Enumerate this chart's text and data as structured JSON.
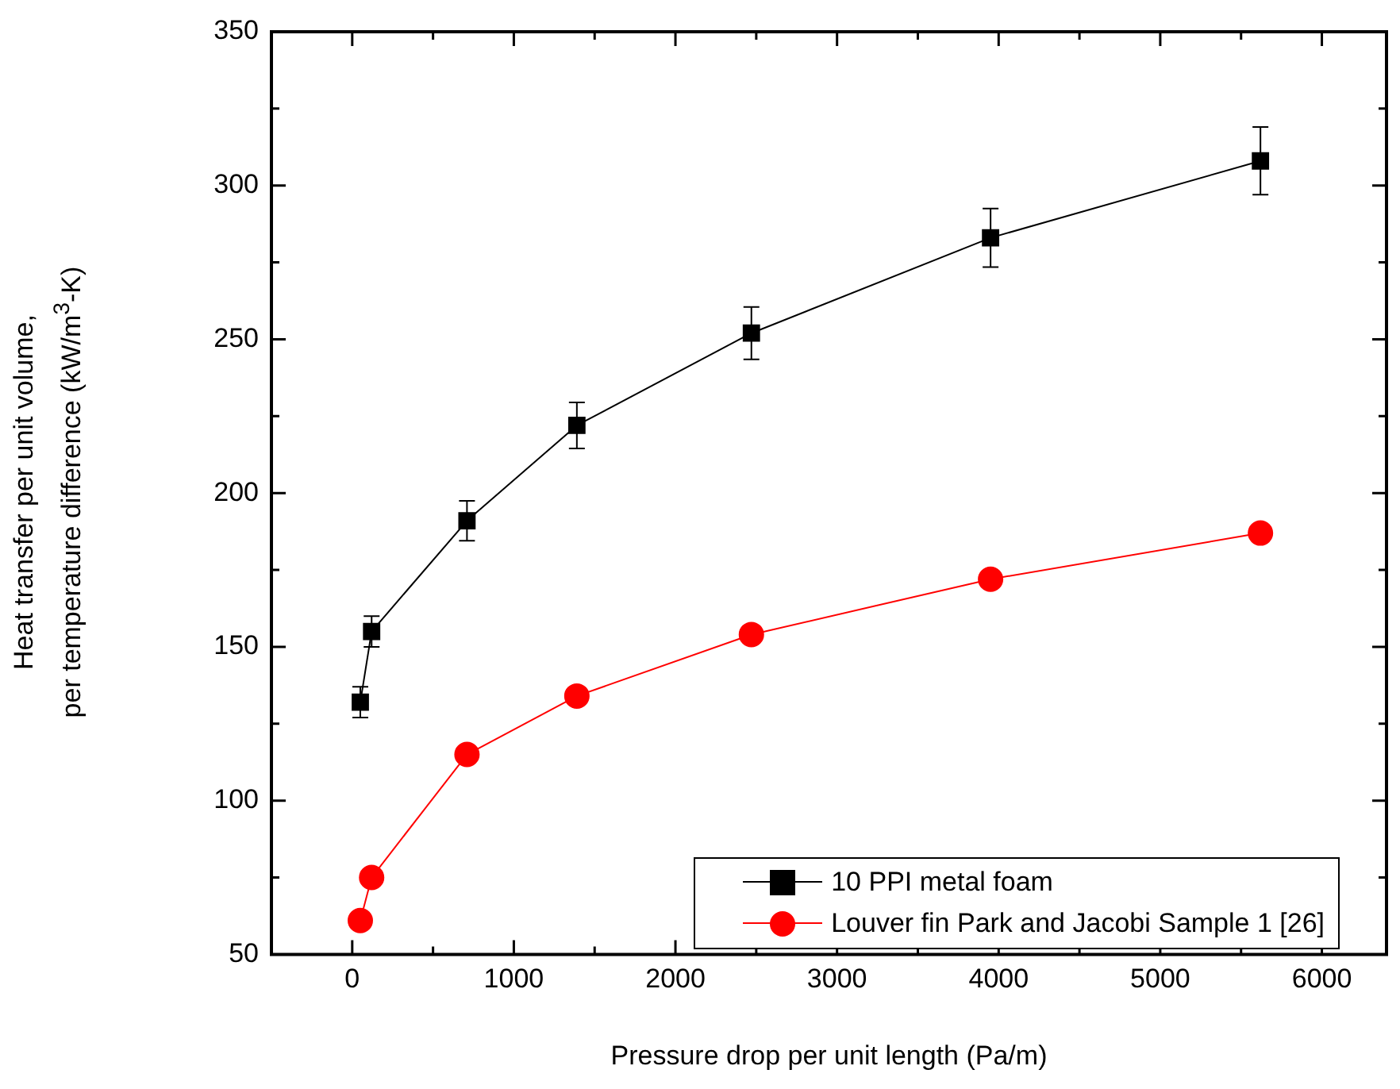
{
  "chart_data": {
    "type": "line",
    "xlabel": "Pressure drop per unit length (Pa/m)",
    "ylabel": "Heat transfer per unit volume,\nper temperature difference  (kW/m$^{3}$-K)",
    "xlim": [
      -500,
      6400
    ],
    "xticks": [
      0,
      {
        "value": 500,
        "label": null
      },
      1000,
      {
        "value": 1500,
        "label": null
      },
      2000,
      {
        "value": 2500,
        "label": null
      },
      3000,
      {
        "value": 3500,
        "label": null
      },
      4000,
      {
        "value": 4500,
        "label": null
      },
      5000,
      {
        "value": 5500,
        "label": null
      },
      6000
    ],
    "ylim": [
      50,
      350
    ],
    "yticks": [
      50,
      {
        "value": 75,
        "label": null
      },
      100,
      {
        "value": 125,
        "label": null
      },
      150,
      {
        "value": 175,
        "label": null
      },
      200,
      {
        "value": 225,
        "label": null
      },
      250,
      {
        "value": 275,
        "label": null
      },
      300,
      {
        "value": 325,
        "label": null
      },
      350
    ],
    "grid": false,
    "legend": "bottom right",
    "line_style": "solid",
    "series": [
      {
        "name": "10 PPI metal foam",
        "color": "#000000",
        "marker": "square",
        "x": [
          50,
          120,
          710,
          1390,
          2470,
          3950,
          5620
        ],
        "values": [
          132,
          155,
          191,
          222,
          252,
          283,
          308
        ],
        "errors": [
          5,
          5,
          6.5,
          7.5,
          8.5,
          9.5,
          11
        ]
      },
      {
        "name": "Louver fin Park and Jacobi Sample 1 [26]",
        "color": "#ff0000",
        "marker": "circle",
        "x": [
          50,
          120,
          710,
          1390,
          2470,
          3950,
          5620
        ],
        "values": [
          61,
          75,
          115,
          134,
          154,
          172,
          187
        ]
      }
    ]
  }
}
